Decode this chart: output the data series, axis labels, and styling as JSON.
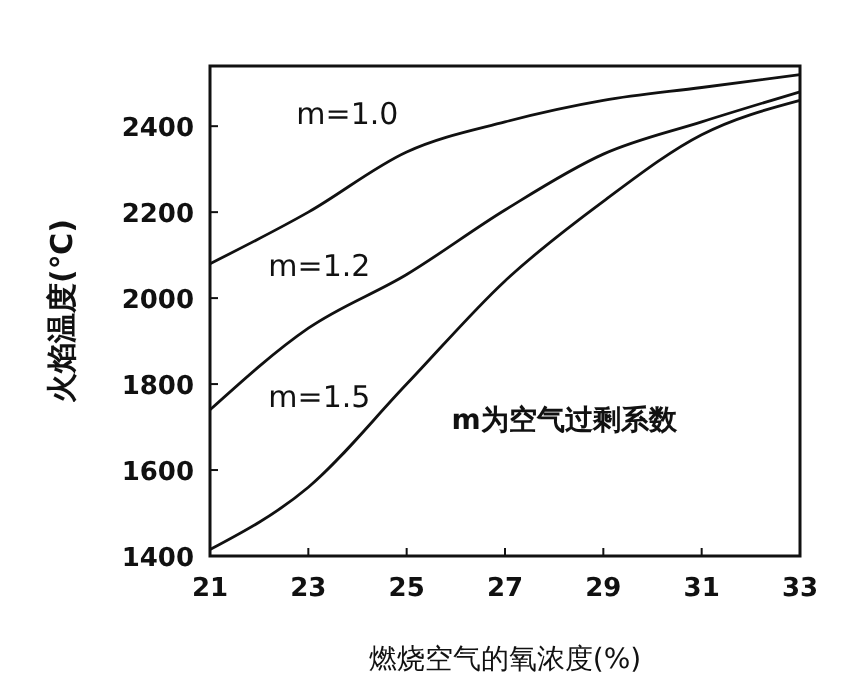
{
  "chart_data": {
    "type": "line",
    "xlabel": "燃烧空气的氧浓度(%)",
    "ylabel": "火焰温度(℃)",
    "x": [
      21,
      23,
      25,
      27,
      29,
      31,
      33
    ],
    "series": [
      {
        "name": "m=1.0",
        "color": "#111111",
        "values": [
          2080,
          2200,
          2340,
          2410,
          2460,
          2490,
          2520
        ]
      },
      {
        "name": "m=1.2",
        "color": "#111111",
        "values": [
          1740,
          1930,
          2055,
          2205,
          2335,
          2410,
          2480
        ]
      },
      {
        "name": "m=1.5",
        "color": "#111111",
        "values": [
          1415,
          1560,
          1800,
          2040,
          2225,
          2380,
          2460
        ]
      }
    ],
    "xlim": [
      21,
      33
    ],
    "xticks": [
      21,
      23,
      25,
      27,
      29,
      31,
      33
    ],
    "ylim": [
      1400,
      2540
    ],
    "yticks": [
      1400,
      1600,
      1800,
      2000,
      2200,
      2400
    ],
    "annotations": [
      "m为空气过剩系数"
    ],
    "grid": false,
    "marker": "none",
    "line_style": "solid"
  }
}
